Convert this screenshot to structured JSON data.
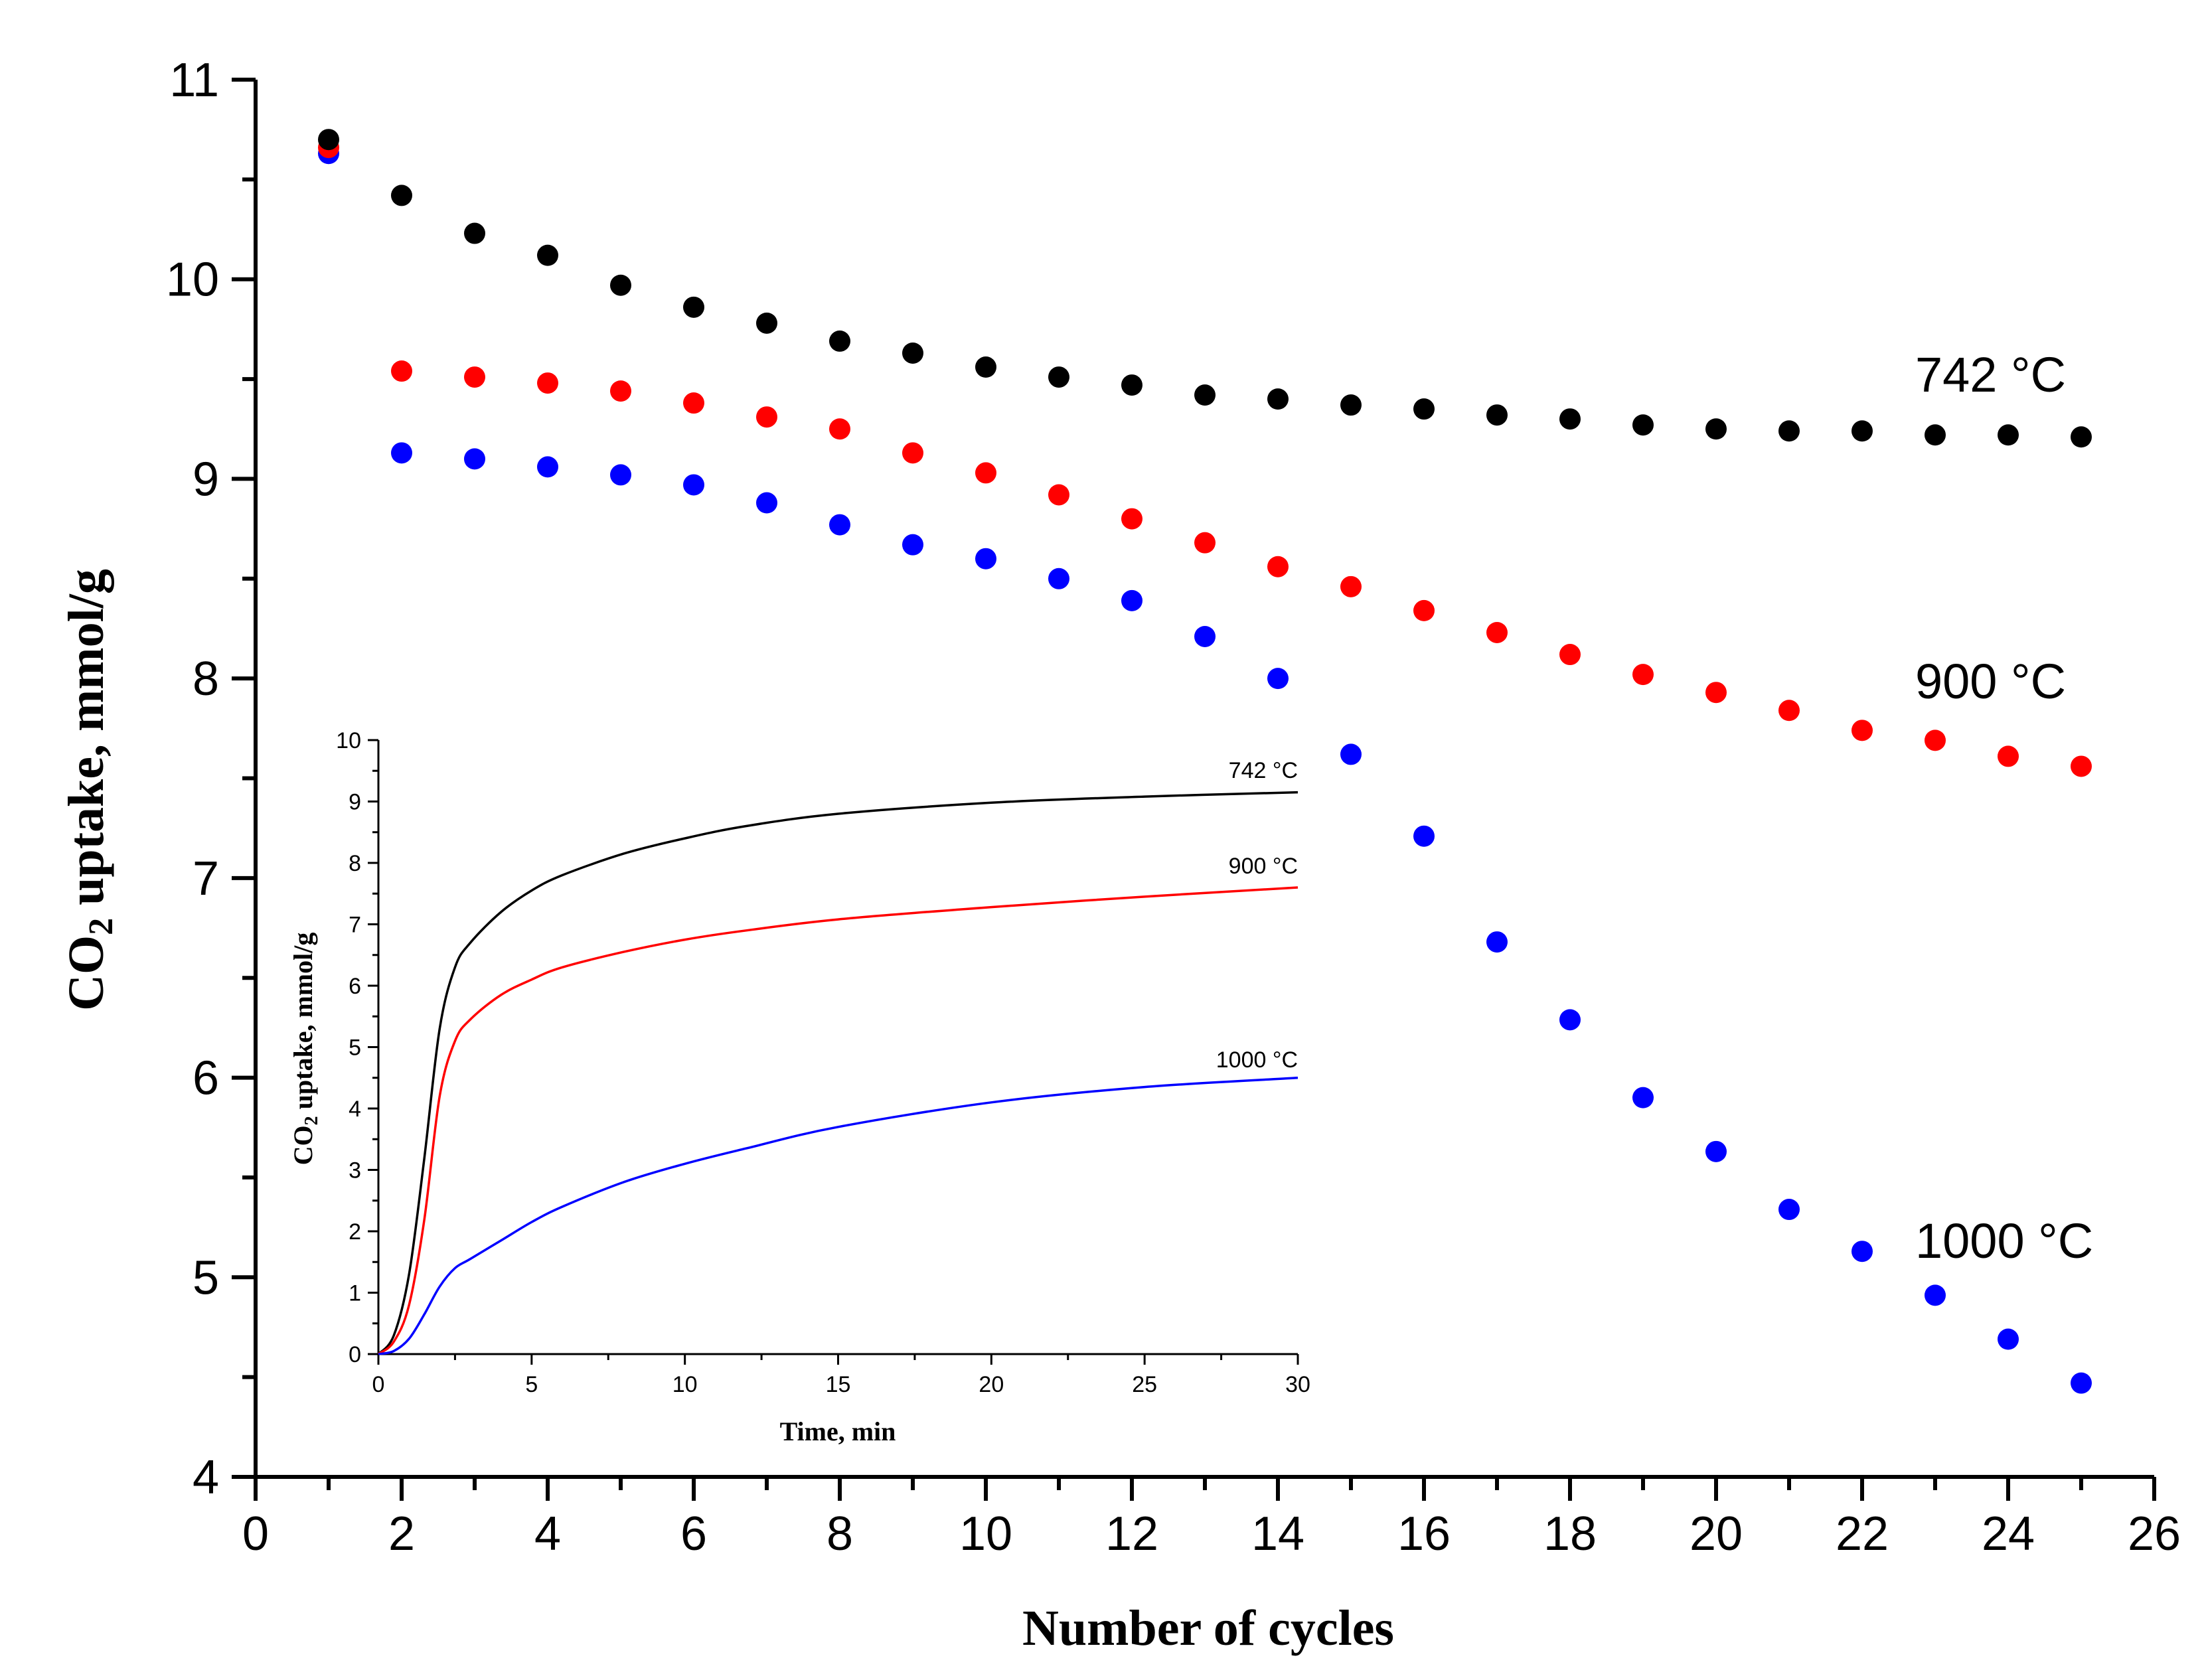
{
  "chart_data": [
    {
      "type": "scatter",
      "name": "main",
      "xlabel": "Number of cycles",
      "ylabel_main": "CO",
      "ylabel_sub": "2",
      "ylabel_rest": " uptake, mmol/g",
      "xlim": [
        0,
        26
      ],
      "ylim": [
        4,
        11
      ],
      "xticks": [
        "0",
        "2",
        "4",
        "6",
        "8",
        "10",
        "12",
        "14",
        "16",
        "18",
        "20",
        "22",
        "24",
        "26"
      ],
      "yticks": [
        "4",
        "5",
        "6",
        "7",
        "8",
        "9",
        "10",
        "11"
      ],
      "series": [
        {
          "name": "742 °C",
          "label": "742 °C",
          "color": "#000000",
          "x": [
            1,
            2,
            3,
            4,
            5,
            6,
            7,
            8,
            9,
            10,
            11,
            12,
            13,
            14,
            15,
            16,
            17,
            18,
            19,
            20,
            21,
            22,
            23,
            24,
            25
          ],
          "values": [
            10.7,
            10.42,
            10.23,
            10.12,
            9.97,
            9.86,
            9.78,
            9.69,
            9.63,
            9.56,
            9.51,
            9.47,
            9.42,
            9.4,
            9.37,
            9.35,
            9.32,
            9.3,
            9.27,
            9.25,
            9.24,
            9.24,
            9.22,
            9.22,
            9.21
          ]
        },
        {
          "name": "900 °C",
          "label": "900 °C",
          "color": "#ff0000",
          "x": [
            1,
            2,
            3,
            4,
            5,
            6,
            7,
            8,
            9,
            10,
            11,
            12,
            13,
            14,
            15,
            16,
            17,
            18,
            19,
            20,
            21,
            22,
            23,
            24,
            25
          ],
          "values": [
            10.66,
            9.54,
            9.51,
            9.48,
            9.44,
            9.38,
            9.31,
            9.25,
            9.13,
            9.03,
            8.92,
            8.8,
            8.68,
            8.56,
            8.46,
            8.34,
            8.23,
            8.12,
            8.02,
            7.93,
            7.84,
            7.74,
            7.69,
            7.61,
            7.56
          ]
        },
        {
          "name": "1000 °C",
          "label": "1000 °C",
          "color": "#0000ff",
          "x": [
            1,
            2,
            3,
            4,
            5,
            6,
            7,
            8,
            9,
            10,
            11,
            12,
            13,
            14,
            15,
            16,
            17,
            18,
            19,
            20,
            21,
            22,
            23,
            24,
            25
          ],
          "values": [
            10.63,
            9.13,
            9.1,
            9.06,
            9.02,
            8.97,
            8.88,
            8.77,
            8.67,
            8.6,
            8.5,
            8.39,
            8.21,
            8.0,
            7.62,
            7.21,
            6.68,
            6.29,
            5.9,
            5.63,
            5.34,
            5.13,
            4.91,
            4.69,
            4.47
          ]
        }
      ]
    },
    {
      "type": "line",
      "name": "inset",
      "xlabel": "Time, min",
      "ylabel_main": "CO",
      "ylabel_sub": "2",
      "ylabel_rest": " uptake, mmol/g",
      "xlim": [
        0,
        30
      ],
      "ylim": [
        0,
        10
      ],
      "xticks": [
        "0",
        "5",
        "10",
        "15",
        "20",
        "25",
        "30"
      ],
      "yticks": [
        "0",
        "1",
        "2",
        "3",
        "4",
        "5",
        "6",
        "7",
        "8",
        "9",
        "10"
      ],
      "series": [
        {
          "name": "742 °C",
          "label": "742 °C",
          "color": "#000000",
          "x": [
            0,
            0.5,
            1,
            1.5,
            2,
            2.5,
            3,
            4,
            5,
            6,
            8,
            10,
            12,
            15,
            20,
            25,
            30
          ],
          "values": [
            0,
            0.3,
            1.3,
            3.2,
            5.3,
            6.3,
            6.7,
            7.2,
            7.55,
            7.8,
            8.15,
            8.4,
            8.6,
            8.8,
            8.98,
            9.08,
            9.15
          ]
        },
        {
          "name": "900 °C",
          "label": "900 °C",
          "color": "#ff0000",
          "x": [
            0,
            0.5,
            1,
            1.5,
            2,
            2.5,
            3,
            4,
            5,
            6,
            8,
            10,
            12,
            15,
            20,
            25,
            30
          ],
          "values": [
            0,
            0.2,
            0.8,
            2.2,
            4.2,
            5.1,
            5.45,
            5.85,
            6.1,
            6.3,
            6.55,
            6.75,
            6.9,
            7.08,
            7.28,
            7.45,
            7.6
          ]
        },
        {
          "name": "1000 °C",
          "label": "1000 °C",
          "color": "#0000ff",
          "x": [
            0,
            0.5,
            1,
            1.5,
            2,
            2.5,
            3,
            4,
            5,
            6,
            8,
            10,
            12,
            15,
            20,
            25,
            30
          ],
          "values": [
            0,
            0.05,
            0.25,
            0.65,
            1.1,
            1.4,
            1.55,
            1.85,
            2.15,
            2.4,
            2.8,
            3.1,
            3.35,
            3.7,
            4.1,
            4.35,
            4.5
          ]
        }
      ]
    }
  ]
}
